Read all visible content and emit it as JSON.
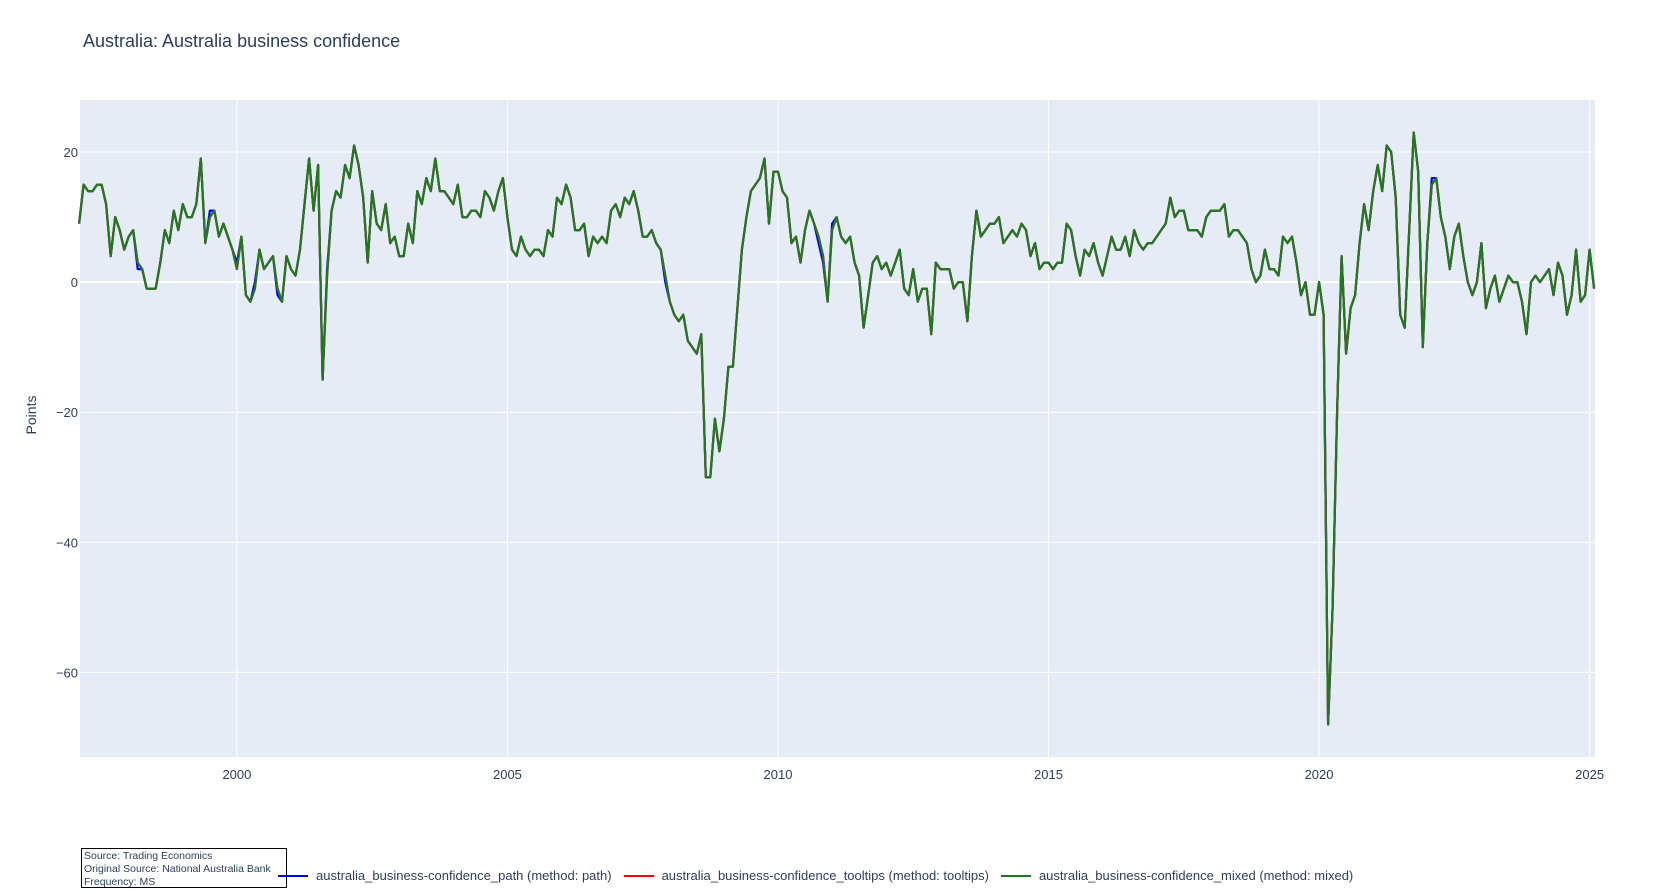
{
  "chart_data": {
    "type": "line",
    "title": "Australia: Australia business confidence",
    "xlabel": "",
    "ylabel": "Points",
    "xlim": [
      1997.1,
      2025.1
    ],
    "ylim": [
      -73,
      28
    ],
    "x_ticks": [
      "2000",
      "2005",
      "2010",
      "2015",
      "2020",
      "2025"
    ],
    "y_ticks": [
      "20",
      "0",
      "−20",
      "−40",
      "−60"
    ],
    "grid": true,
    "legend_position": "bottom",
    "x_start": 1997.0833,
    "x_step": 0.0833333,
    "series": [
      {
        "name": "australia_business-confidence_path (method: path)",
        "color": "#0000ff",
        "values": [
          9,
          15,
          14,
          14,
          15,
          15,
          12,
          4,
          10,
          8,
          5,
          7,
          8,
          2,
          2,
          -1,
          -1,
          -1,
          3,
          8,
          6,
          11,
          8,
          12,
          10,
          10,
          12,
          19,
          6,
          11,
          11,
          7,
          9,
          7,
          5,
          3,
          7,
          -2,
          -3,
          0,
          5,
          2,
          3,
          4,
          -2,
          -3,
          4,
          2,
          1,
          5,
          12,
          19,
          11,
          18,
          -15,
          2,
          11,
          14,
          13,
          18,
          16,
          21,
          18,
          13,
          3,
          14,
          9,
          8,
          12,
          6,
          7,
          4,
          4,
          9,
          6,
          14,
          12,
          16,
          14,
          19,
          14,
          14,
          13,
          12,
          15,
          10,
          10,
          11,
          11,
          10,
          14,
          13,
          11,
          14,
          16,
          10,
          5,
          4,
          7,
          5,
          4,
          5,
          5,
          4,
          8,
          7,
          13,
          12,
          15,
          13,
          8,
          8,
          9,
          4,
          7,
          6,
          7,
          6,
          11,
          12,
          10,
          13,
          12,
          14,
          11,
          7,
          7,
          8,
          6,
          5,
          0,
          -3,
          -5,
          -6,
          -5,
          -9,
          -10,
          -11,
          -8,
          -30,
          -30,
          -21,
          -26,
          -21,
          -13,
          -13,
          -4,
          5,
          10,
          14,
          15,
          16,
          19,
          9,
          17,
          17,
          14,
          13,
          6,
          7,
          3,
          8,
          11,
          9,
          6,
          3,
          -3,
          9,
          10,
          7,
          6,
          7,
          3,
          1,
          -7,
          -2,
          3,
          4,
          2,
          3,
          1,
          3,
          5,
          -1,
          -2,
          2,
          -3,
          -1,
          -1,
          -8,
          3,
          2,
          2,
          2,
          -1,
          0,
          0,
          -6,
          4,
          11,
          7,
          8,
          9,
          9,
          10,
          6,
          7,
          8,
          7,
          9,
          8,
          4,
          6,
          2,
          3,
          3,
          2,
          3,
          3,
          9,
          8,
          4,
          1,
          5,
          4,
          6,
          3,
          1,
          4,
          7,
          5,
          5,
          7,
          4,
          8,
          6,
          5,
          6,
          6,
          7,
          8,
          9,
          13,
          10,
          11,
          11,
          8,
          8,
          8,
          7,
          10,
          11,
          11,
          11,
          12,
          7,
          8,
          8,
          7,
          6,
          2,
          0,
          1,
          5,
          2,
          2,
          1,
          7,
          6,
          7,
          3,
          -2,
          0,
          -5,
          -5,
          0,
          -5,
          -68,
          -50,
          -20,
          4,
          -11,
          -4,
          -2,
          6,
          12,
          8,
          14,
          18,
          14,
          21,
          20,
          13,
          -5,
          -7,
          8,
          23,
          17,
          -10,
          6,
          16,
          16,
          10,
          7,
          2,
          7,
          9,
          4,
          0,
          -2,
          0,
          6,
          -4,
          -1,
          1,
          -3,
          -1,
          1,
          0,
          0,
          -3,
          -8,
          0,
          1,
          0,
          1,
          2,
          -2,
          3,
          1,
          -5,
          -2,
          5,
          -3,
          -2,
          5,
          -1
        ]
      },
      {
        "name": "australia_business-confidence_tooltips (method: tooltips)",
        "color": "#ff0000",
        "values": [
          9,
          15,
          14,
          14,
          15,
          15,
          12,
          4,
          10,
          8,
          5,
          7,
          8,
          3,
          2,
          -1,
          -1,
          -1,
          3,
          8,
          6,
          11,
          8,
          12,
          10,
          10,
          12,
          19,
          6,
          10,
          11,
          7,
          9,
          7,
          5,
          2,
          7,
          -2,
          -3,
          -1,
          5,
          2,
          3,
          4,
          -1,
          -3,
          4,
          2,
          1,
          5,
          12,
          19,
          11,
          18,
          -15,
          1,
          11,
          14,
          13,
          18,
          16,
          21,
          18,
          13,
          3,
          14,
          9,
          8,
          12,
          6,
          7,
          4,
          4,
          9,
          6,
          14,
          12,
          16,
          14,
          19,
          14,
          14,
          13,
          12,
          15,
          10,
          10,
          11,
          11,
          10,
          14,
          13,
          11,
          14,
          16,
          10,
          5,
          4,
          7,
          5,
          4,
          5,
          5,
          4,
          8,
          7,
          13,
          12,
          15,
          13,
          8,
          8,
          9,
          4,
          7,
          6,
          7,
          6,
          11,
          12,
          10,
          13,
          12,
          14,
          11,
          7,
          7,
          8,
          6,
          5,
          1,
          -3,
          -5,
          -6,
          -5,
          -9,
          -10,
          -11,
          -8,
          -30,
          -30,
          -21,
          -26,
          -21,
          -13,
          -13,
          -4,
          5,
          10,
          14,
          15,
          16,
          19,
          9,
          17,
          17,
          14,
          13,
          6,
          7,
          3,
          8,
          11,
          9,
          7,
          4,
          -3,
          8,
          10,
          7,
          6,
          7,
          3,
          1,
          -7,
          -2,
          3,
          4,
          2,
          3,
          1,
          3,
          5,
          -1,
          -2,
          2,
          -3,
          -1,
          -1,
          -8,
          3,
          2,
          2,
          2,
          -1,
          0,
          0,
          -6,
          4,
          11,
          7,
          8,
          9,
          9,
          10,
          6,
          7,
          8,
          7,
          9,
          8,
          4,
          6,
          2,
          3,
          3,
          2,
          3,
          3,
          9,
          8,
          4,
          1,
          5,
          4,
          6,
          3,
          1,
          4,
          7,
          5,
          5,
          7,
          4,
          8,
          6,
          5,
          6,
          6,
          7,
          8,
          9,
          13,
          10,
          11,
          11,
          8,
          8,
          8,
          7,
          10,
          11,
          11,
          11,
          12,
          7,
          8,
          8,
          7,
          6,
          2,
          0,
          1,
          5,
          2,
          2,
          1,
          7,
          6,
          7,
          3,
          -2,
          0,
          -5,
          -5,
          0,
          -5,
          -68,
          -50,
          -20,
          4,
          -11,
          -4,
          -2,
          6,
          12,
          8,
          14,
          18,
          14,
          21,
          20,
          13,
          -5,
          -7,
          8,
          23,
          17,
          -10,
          6,
          15,
          16,
          10,
          7,
          2,
          7,
          9,
          4,
          0,
          -2,
          0,
          6,
          -4,
          -1,
          1,
          -3,
          -1,
          1,
          0,
          0,
          -3,
          -8,
          0,
          1,
          0,
          1,
          2,
          -2,
          3,
          1,
          -5,
          -2,
          5,
          -3,
          -2,
          5,
          -1
        ]
      },
      {
        "name": "australia_business-confidence_mixed (method: mixed)",
        "color": "#1f7a1f",
        "values": [
          9,
          15,
          14,
          14,
          15,
          15,
          12,
          4,
          10,
          8,
          5,
          7,
          8,
          3,
          2,
          -1,
          -1,
          -1,
          3,
          8,
          6,
          11,
          8,
          12,
          10,
          10,
          12,
          19,
          6,
          10,
          11,
          7,
          9,
          7,
          5,
          2,
          7,
          -2,
          -3,
          -1,
          5,
          2,
          3,
          4,
          -1,
          -3,
          4,
          2,
          1,
          5,
          12,
          19,
          11,
          18,
          -15,
          1,
          11,
          14,
          13,
          18,
          16,
          21,
          18,
          13,
          3,
          14,
          9,
          8,
          12,
          6,
          7,
          4,
          4,
          9,
          6,
          14,
          12,
          16,
          14,
          19,
          14,
          14,
          13,
          12,
          15,
          10,
          10,
          11,
          11,
          10,
          14,
          13,
          11,
          14,
          16,
          10,
          5,
          4,
          7,
          5,
          4,
          5,
          5,
          4,
          8,
          7,
          13,
          12,
          15,
          13,
          8,
          8,
          9,
          4,
          7,
          6,
          7,
          6,
          11,
          12,
          10,
          13,
          12,
          14,
          11,
          7,
          7,
          8,
          6,
          5,
          1,
          -3,
          -5,
          -6,
          -5,
          -9,
          -10,
          -11,
          -8,
          -30,
          -30,
          -21,
          -26,
          -21,
          -13,
          -13,
          -4,
          5,
          10,
          14,
          15,
          16,
          19,
          9,
          17,
          17,
          14,
          13,
          6,
          7,
          3,
          8,
          11,
          9,
          7,
          4,
          -3,
          8,
          10,
          7,
          6,
          7,
          3,
          1,
          -7,
          -2,
          3,
          4,
          2,
          3,
          1,
          3,
          5,
          -1,
          -2,
          2,
          -3,
          -1,
          -1,
          -8,
          3,
          2,
          2,
          2,
          -1,
          0,
          0,
          -6,
          4,
          11,
          7,
          8,
          9,
          9,
          10,
          6,
          7,
          8,
          7,
          9,
          8,
          4,
          6,
          2,
          3,
          3,
          2,
          3,
          3,
          9,
          8,
          4,
          1,
          5,
          4,
          6,
          3,
          1,
          4,
          7,
          5,
          5,
          7,
          4,
          8,
          6,
          5,
          6,
          6,
          7,
          8,
          9,
          13,
          10,
          11,
          11,
          8,
          8,
          8,
          7,
          10,
          11,
          11,
          11,
          12,
          7,
          8,
          8,
          7,
          6,
          2,
          0,
          1,
          5,
          2,
          2,
          1,
          7,
          6,
          7,
          3,
          -2,
          0,
          -5,
          -5,
          0,
          -5,
          -68,
          -50,
          -20,
          4,
          -11,
          -4,
          -2,
          6,
          12,
          8,
          14,
          18,
          14,
          21,
          20,
          13,
          -5,
          -7,
          8,
          23,
          17,
          -10,
          6,
          15,
          16,
          10,
          7,
          2,
          7,
          9,
          4,
          0,
          -2,
          0,
          6,
          -4,
          -1,
          1,
          -3,
          -1,
          1,
          0,
          0,
          -3,
          -8,
          0,
          1,
          0,
          1,
          2,
          -2,
          3,
          1,
          -5,
          -2,
          5,
          -3,
          -2,
          5,
          -1
        ]
      }
    ]
  },
  "colors": {
    "plot_background": "#e5ecf6",
    "grid": "#ffffff",
    "text": "#2a3f5f"
  },
  "source_box": {
    "line1": "Source: Trading Economics",
    "line2": "Original Source: National Australia Bank",
    "line3": "Frequency: MS"
  }
}
